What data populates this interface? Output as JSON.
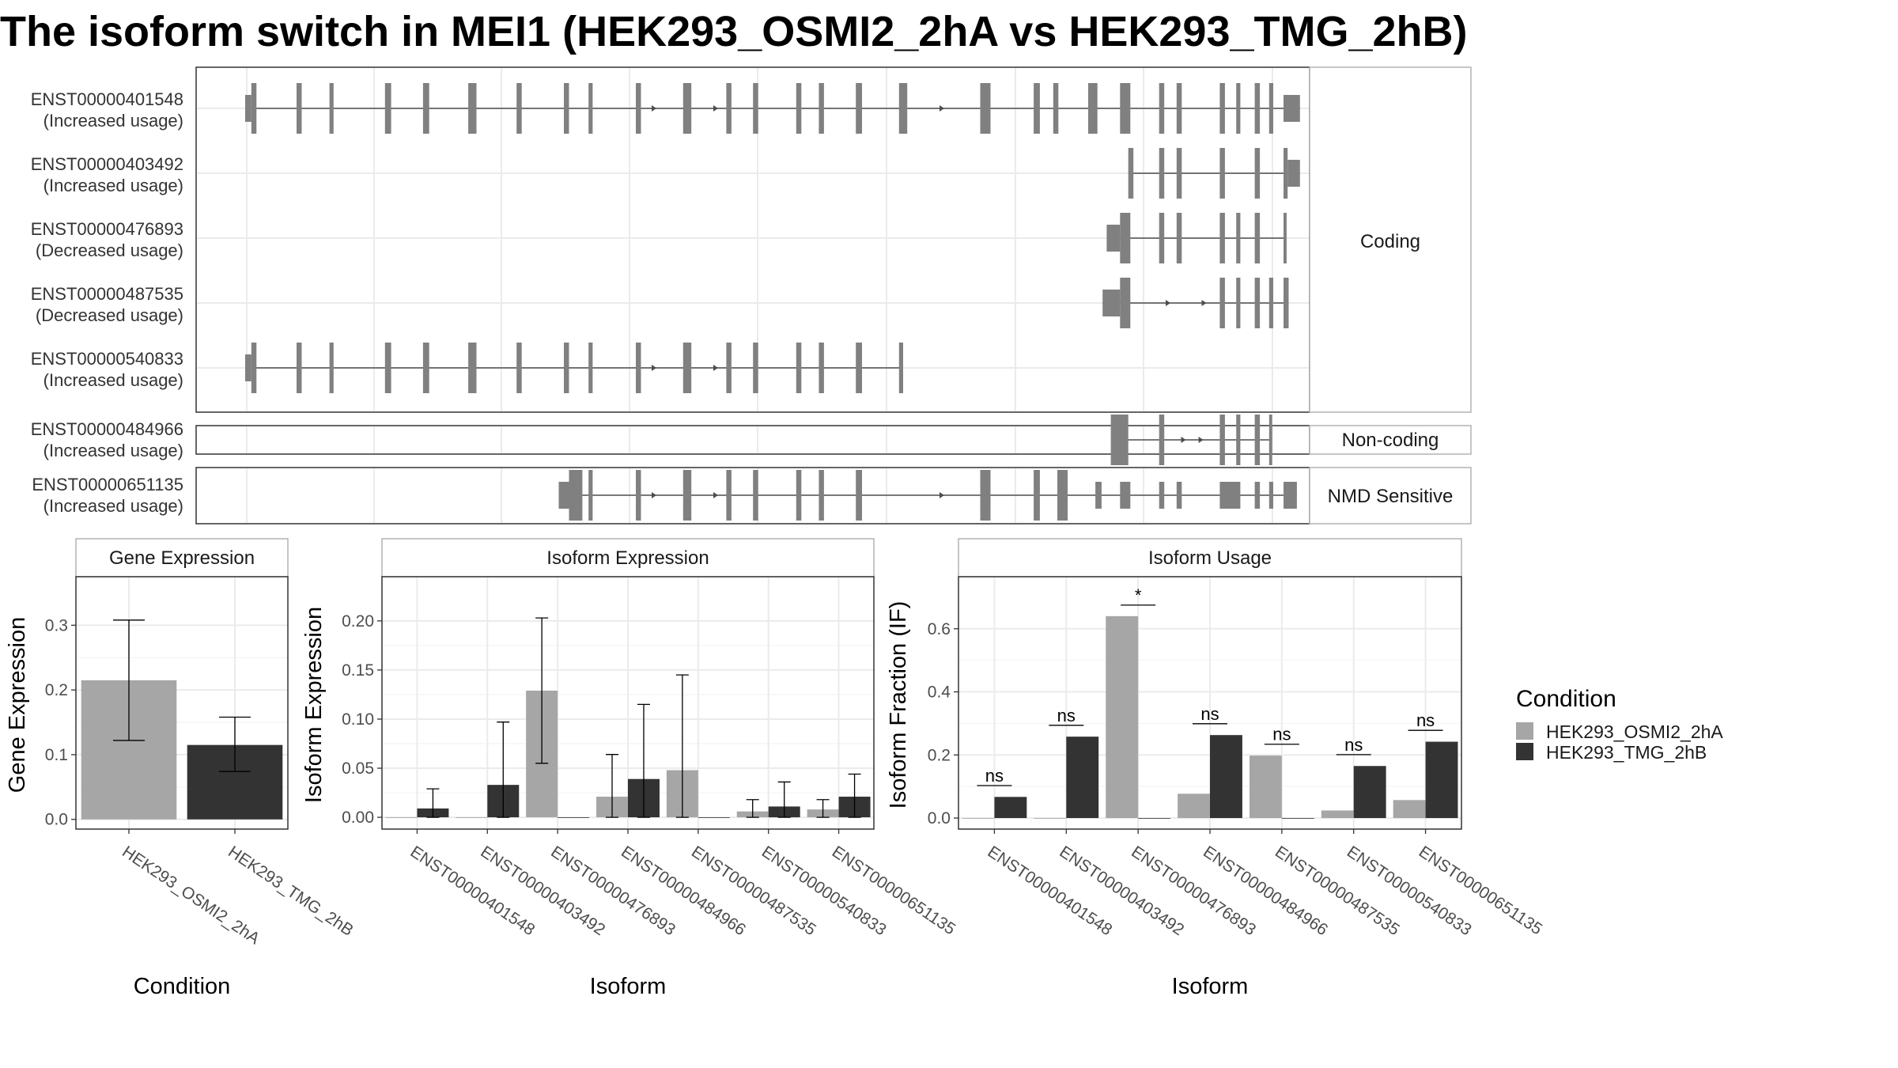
{
  "title": "The isoform switch in MEI1 (HEK293_OSMI2_2hA vs HEK293_TMG_2hB)",
  "colors": {
    "exon": "#808080",
    "intron": "#4d4d4d",
    "condition_a": "#a6a6a6",
    "condition_b": "#333333",
    "grid": "#ebebeb",
    "panel_border": "#333333",
    "strip_border": "#b3b3b3"
  },
  "transcript_panels": [
    {
      "name": "Coding",
      "transcripts": [
        {
          "id": "ENST00000401548",
          "usage": "(Increased usage)",
          "start_tall": 0.6,
          "exons": [
            [
              0,
              0.6,
              "s"
            ],
            [
              0.6,
              1.1,
              "t"
            ],
            [
              5.0,
              5.5,
              "t"
            ],
            [
              8.2,
              8.6,
              "t"
            ],
            [
              13.6,
              14.2,
              "t"
            ],
            [
              17.3,
              17.9,
              "t"
            ],
            [
              21.7,
              22.5,
              "t"
            ],
            [
              26.4,
              26.9,
              "t"
            ],
            [
              31.0,
              31.5,
              "t"
            ],
            [
              33.4,
              33.8,
              "t"
            ],
            [
              38.0,
              38.5,
              "t"
            ],
            [
              42.6,
              43.4,
              "t"
            ],
            [
              46.8,
              47.3,
              "t"
            ],
            [
              49.4,
              49.9,
              "t"
            ],
            [
              53.6,
              54.1,
              "t"
            ],
            [
              55.8,
              56.3,
              "t"
            ],
            [
              59.4,
              60.0,
              "t"
            ],
            [
              63.6,
              64.4,
              "t"
            ],
            [
              71.5,
              72.5,
              "t"
            ],
            [
              76.7,
              77.3,
              "t"
            ],
            [
              78.6,
              79.1,
              "t"
            ],
            [
              82.0,
              82.9,
              "t"
            ],
            [
              85.1,
              86.1,
              "t"
            ],
            [
              88.9,
              89.4,
              "t"
            ],
            [
              90.6,
              91.1,
              "t"
            ],
            [
              94.8,
              95.3,
              "t"
            ],
            [
              96.4,
              96.8,
              "t"
            ],
            [
              98.2,
              98.7,
              "t"
            ],
            [
              99.6,
              100.0,
              "t"
            ],
            [
              101.0,
              102.6,
              "s"
            ]
          ],
          "arrows": [
            40.0,
            46.0,
            68.0
          ]
        },
        {
          "id": "ENST00000403492",
          "usage": "(Increased usage)",
          "exons": [
            [
              85.9,
              86.4,
              "t"
            ],
            [
              88.9,
              89.4,
              "t"
            ],
            [
              90.6,
              91.1,
              "t"
            ],
            [
              94.8,
              95.3,
              "t"
            ],
            [
              98.2,
              98.7,
              "t"
            ],
            [
              101.0,
              101.4,
              "t"
            ],
            [
              101.4,
              102.6,
              "s"
            ]
          ],
          "arrows": []
        },
        {
          "id": "ENST00000476893",
          "usage": "(Decreased usage)",
          "exons": [
            [
              83.8,
              85.1,
              "s"
            ],
            [
              85.1,
              86.1,
              "t"
            ],
            [
              88.9,
              89.4,
              "t"
            ],
            [
              90.6,
              91.1,
              "t"
            ],
            [
              94.8,
              95.3,
              "t"
            ],
            [
              96.4,
              96.8,
              "t"
            ],
            [
              98.2,
              98.7,
              "t"
            ],
            [
              101.0,
              101.3,
              "t"
            ]
          ],
          "arrows": []
        },
        {
          "id": "ENST00000487535",
          "usage": "(Decreased usage)",
          "exons": [
            [
              83.4,
              85.1,
              "s"
            ],
            [
              85.1,
              86.1,
              "t"
            ],
            [
              94.8,
              95.3,
              "t"
            ],
            [
              96.4,
              96.8,
              "t"
            ],
            [
              98.2,
              98.7,
              "t"
            ],
            [
              99.6,
              100.0,
              "t"
            ],
            [
              101.0,
              101.5,
              "t"
            ]
          ],
          "arrows": [
            90.0,
            93.5
          ]
        },
        {
          "id": "ENST00000540833",
          "usage": "(Increased usage)",
          "exons": [
            [
              0,
              0.6,
              "s"
            ],
            [
              0.6,
              1.1,
              "t"
            ],
            [
              5.0,
              5.5,
              "t"
            ],
            [
              8.2,
              8.6,
              "t"
            ],
            [
              13.6,
              14.2,
              "t"
            ],
            [
              17.3,
              17.9,
              "t"
            ],
            [
              21.7,
              22.5,
              "t"
            ],
            [
              26.4,
              26.9,
              "t"
            ],
            [
              31.0,
              31.5,
              "t"
            ],
            [
              33.4,
              33.8,
              "t"
            ],
            [
              38.0,
              38.5,
              "t"
            ],
            [
              42.6,
              43.4,
              "t"
            ],
            [
              46.8,
              47.3,
              "t"
            ],
            [
              49.4,
              49.9,
              "t"
            ],
            [
              53.6,
              54.1,
              "t"
            ],
            [
              55.8,
              56.3,
              "t"
            ],
            [
              59.4,
              60.0,
              "t"
            ],
            [
              63.6,
              64.0,
              "t"
            ]
          ],
          "arrows": [
            40.0,
            46.0
          ]
        }
      ]
    },
    {
      "name": "Non-coding",
      "transcripts": [
        {
          "id": "ENST00000484966",
          "usage": "(Increased usage)",
          "exons": [
            [
              84.2,
              85.9,
              "t"
            ],
            [
              88.9,
              89.4,
              "t"
            ],
            [
              94.8,
              95.3,
              "t"
            ],
            [
              96.4,
              96.8,
              "t"
            ],
            [
              98.2,
              98.7,
              "t"
            ],
            [
              99.6,
              99.9,
              "t"
            ]
          ],
          "arrows": [
            91.5,
            93.2
          ]
        }
      ]
    },
    {
      "name": "NMD Sensitive",
      "transcripts": [
        {
          "id": "ENST00000651135",
          "usage": "(Increased usage)",
          "exons": [
            [
              30.5,
              31.5,
              "s"
            ],
            [
              31.5,
              32.8,
              "t"
            ],
            [
              33.4,
              33.8,
              "t"
            ],
            [
              38.0,
              38.5,
              "t"
            ],
            [
              42.6,
              43.4,
              "t"
            ],
            [
              46.8,
              47.3,
              "t"
            ],
            [
              49.4,
              49.9,
              "t"
            ],
            [
              53.6,
              54.1,
              "t"
            ],
            [
              55.8,
              56.3,
              "t"
            ],
            [
              59.4,
              60.0,
              "t"
            ],
            [
              71.5,
              72.5,
              "t"
            ],
            [
              76.7,
              77.3,
              "t"
            ],
            [
              79.0,
              80.0,
              "t"
            ],
            [
              82.7,
              83.3,
              "s"
            ],
            [
              85.1,
              86.1,
              "s"
            ],
            [
              88.9,
              89.4,
              "s"
            ],
            [
              90.6,
              91.1,
              "s"
            ],
            [
              94.8,
              96.8,
              "s"
            ],
            [
              98.2,
              98.7,
              "s"
            ],
            [
              99.6,
              100.0,
              "s"
            ],
            [
              101.0,
              102.3,
              "s"
            ]
          ],
          "arrows": [
            40.0,
            46.0,
            68.0
          ]
        }
      ]
    }
  ],
  "chart_data": [
    {
      "type": "bar",
      "title": "Gene Expression",
      "xlabel": "Condition",
      "ylabel": "Gene Expression",
      "categories": [
        "HEK293_OSMI2_2hA",
        "HEK293_TMG_2hB"
      ],
      "values": [
        0.215,
        0.115
      ],
      "error_low": [
        0.122,
        0.074
      ],
      "error_high": [
        0.308,
        0.158
      ],
      "ylim": [
        -0.015,
        0.375
      ],
      "yticks": [
        0.0,
        0.1,
        0.2,
        0.3
      ],
      "ytick_labels": [
        "0.0",
        "0.1",
        "0.2",
        "0.3"
      ],
      "grid": true
    },
    {
      "type": "bar",
      "title": "Isoform Expression",
      "xlabel": "Isoform",
      "ylabel": "Isoform Expression",
      "categories": [
        "ENST00000401548",
        "ENST00000403492",
        "ENST00000476893",
        "ENST00000484966",
        "ENST00000487535",
        "ENST00000540833",
        "ENST00000651135"
      ],
      "series": [
        {
          "name": "HEK293_OSMI2_2hA",
          "values": [
            0.0,
            0.0,
            0.129,
            0.021,
            0.048,
            0.006,
            0.008
          ],
          "error_low": [
            0.0,
            0.0,
            0.055,
            0.0,
            0.0,
            0.0,
            0.0
          ],
          "error_high": [
            0.0,
            0.0,
            0.203,
            0.064,
            0.145,
            0.018,
            0.018
          ]
        },
        {
          "name": "HEK293_TMG_2hB",
          "values": [
            0.009,
            0.033,
            0.0,
            0.039,
            0.0,
            0.011,
            0.021
          ],
          "error_low": [
            0.0,
            0.0,
            0.0,
            0.0,
            0.0,
            0.0,
            0.0
          ],
          "error_high": [
            0.029,
            0.097,
            0.0,
            0.115,
            0.0,
            0.036,
            0.044
          ]
        }
      ],
      "ylim": [
        -0.012,
        0.245
      ],
      "yticks": [
        0.0,
        0.05,
        0.1,
        0.15,
        0.2
      ],
      "ytick_labels": [
        "0.00",
        "0.05",
        "0.10",
        "0.15",
        "0.20"
      ],
      "grid": true
    },
    {
      "type": "bar",
      "title": "Isoform Usage",
      "xlabel": "Isoform",
      "ylabel": "Isoform Fraction (IF)",
      "categories": [
        "ENST00000401548",
        "ENST00000403492",
        "ENST00000476893",
        "ENST00000484966",
        "ENST00000487535",
        "ENST00000540833",
        "ENST00000651135"
      ],
      "series": [
        {
          "name": "HEK293_OSMI2_2hA",
          "values": [
            0.0,
            0.0,
            0.64,
            0.077,
            0.198,
            0.024,
            0.057
          ]
        },
        {
          "name": "HEK293_TMG_2hB",
          "values": [
            0.067,
            0.258,
            0.0,
            0.263,
            0.0,
            0.165,
            0.242
          ]
        }
      ],
      "significance": [
        "ns",
        "ns",
        "*",
        "ns",
        "ns",
        "ns",
        "ns"
      ],
      "significance_y": [
        0.103,
        0.294,
        0.675,
        0.299,
        0.234,
        0.201,
        0.278
      ],
      "ylim": [
        -0.035,
        0.765
      ],
      "yticks": [
        0.0,
        0.2,
        0.4,
        0.6
      ],
      "ytick_labels": [
        "0.0",
        "0.2",
        "0.4",
        "0.6"
      ],
      "grid": true
    }
  ],
  "legend": {
    "title": "Condition",
    "position": "right",
    "items": [
      {
        "label": "HEK293_OSMI2_2hA",
        "color": "#a6a6a6"
      },
      {
        "label": "HEK293_TMG_2hB",
        "color": "#333333"
      }
    ]
  }
}
